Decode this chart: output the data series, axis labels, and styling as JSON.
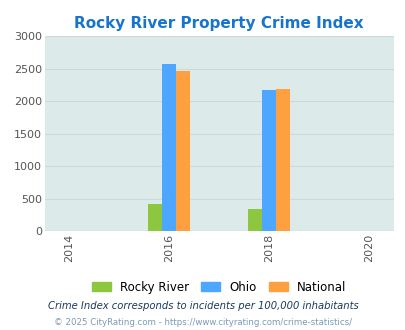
{
  "title": "Rocky River Property Crime Index",
  "title_color": "#1874cd",
  "title_fontsize": 11,
  "years": [
    2016,
    2018
  ],
  "rocky_river": [
    410,
    340
  ],
  "ohio": [
    2580,
    2170
  ],
  "national": [
    2460,
    2195
  ],
  "bar_colors": {
    "rocky_river": "#8dc63f",
    "ohio": "#4da6ff",
    "national": "#ffa040"
  },
  "xlim": [
    2013.5,
    2020.5
  ],
  "ylim": [
    0,
    3000
  ],
  "yticks": [
    0,
    500,
    1000,
    1500,
    2000,
    2500,
    3000
  ],
  "xticks": [
    2014,
    2016,
    2018,
    2020
  ],
  "background_color": "#ddeaea",
  "grid_color": "#c8dcdc",
  "legend_labels": [
    "Rocky River",
    "Ohio",
    "National"
  ],
  "footnote1": "Crime Index corresponds to incidents per 100,000 inhabitants",
  "footnote2": "© 2025 CityRating.com - https://www.cityrating.com/crime-statistics/",
  "bar_width": 0.28
}
